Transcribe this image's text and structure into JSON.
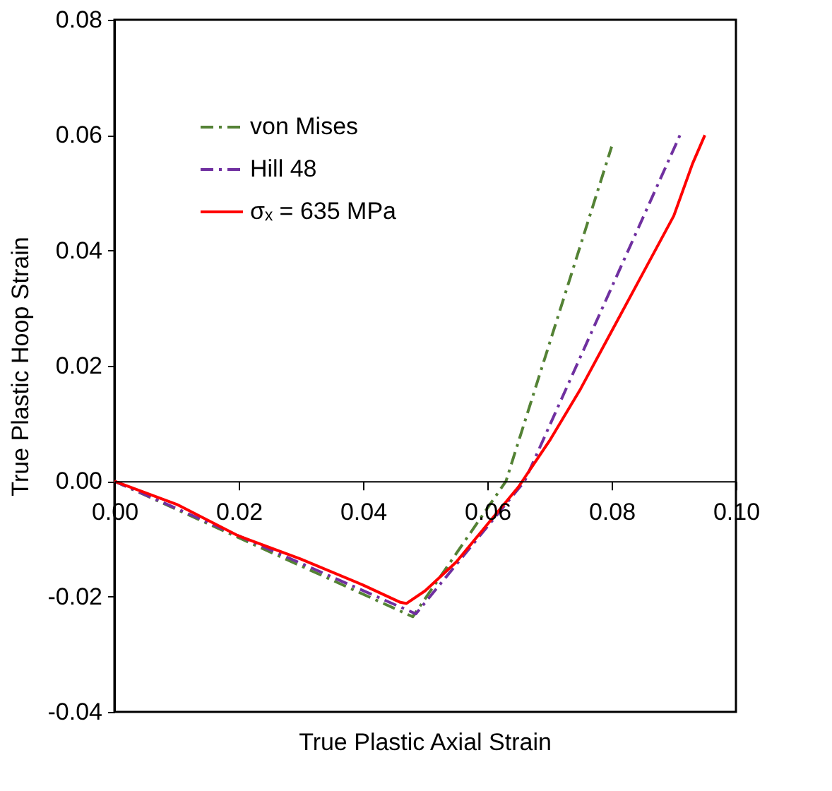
{
  "chart_data": {
    "type": "line",
    "xlabel": "True Plastic Axial Strain",
    "ylabel": "True Plastic Hoop Strain",
    "xlim": [
      0,
      0.1
    ],
    "xticks": [
      {
        "value": 0,
        "label": "0.00"
      },
      {
        "value": 0.02,
        "label": "0.02"
      },
      {
        "value": 0.04,
        "label": "0.04"
      },
      {
        "value": 0.06,
        "label": "0.06"
      },
      {
        "value": 0.08,
        "label": "0.08"
      },
      {
        "value": 0.1,
        "label": "0.10"
      }
    ],
    "ylim": [
      -0.04,
      0.08
    ],
    "yticks": [
      {
        "value": -0.04,
        "label": "-0.04"
      },
      {
        "value": -0.02,
        "label": "-0.02"
      },
      {
        "value": 0,
        "label": "0.00"
      },
      {
        "value": 0.02,
        "label": "0.02"
      },
      {
        "value": 0.04,
        "label": "0.04"
      },
      {
        "value": 0.06,
        "label": "0.06"
      },
      {
        "value": 0.08,
        "label": "0.08"
      }
    ],
    "grid": false,
    "legend": "top left",
    "marker": "none",
    "series": [
      {
        "name": "von Mises",
        "color": "#548235",
        "line_style": "dashdot",
        "x": [
          0,
          0.048,
          0.063,
          0.08
        ],
        "values": [
          0,
          -0.0235,
          0,
          0.058
        ]
      },
      {
        "name": "Hill 48",
        "color": "#7030a0",
        "line_style": "dashdot",
        "x": [
          0,
          0.0485,
          0.066,
          0.091
        ],
        "values": [
          0,
          -0.023,
          0,
          0.06
        ]
      },
      {
        "name": "σₓ = 635 MPa",
        "color": "#ff0000",
        "line_style": "solid",
        "x": [
          0,
          0.01,
          0.02,
          0.03,
          0.04,
          0.046,
          0.047,
          0.05,
          0.055,
          0.06,
          0.065,
          0.07,
          0.075,
          0.08,
          0.085,
          0.09,
          0.093,
          0.095
        ],
        "values": [
          0,
          -0.004,
          -0.0095,
          -0.0135,
          -0.018,
          -0.021,
          -0.0212,
          -0.019,
          -0.014,
          -0.0075,
          -0.001,
          0.007,
          0.016,
          0.026,
          0.036,
          0.046,
          0.055,
          0.06
        ]
      }
    ]
  }
}
